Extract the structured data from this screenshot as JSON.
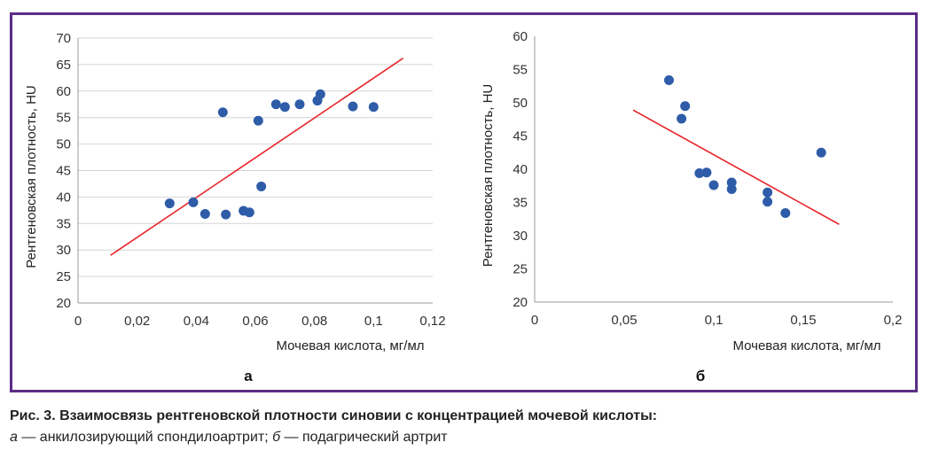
{
  "caption": {
    "title": "Рис. 3. Взаимосвязь рентгеновской плотности синовии с концентрацией мочевой кислоты:",
    "a_letter": "а",
    "a_text": " — анкилозирующий спондилоартрит; ",
    "b_letter": "б",
    "b_text": " — подагрический артрит"
  },
  "colors": {
    "frame": "#5b2d86",
    "points": "#2f5ca8",
    "trend": "#e8262b",
    "grid": "#d4d4d4"
  },
  "chart_data": [
    {
      "type": "scatter",
      "panel_label": "а",
      "xlabel": "Мочевая кислота, мг/мл",
      "ylabel": "Рентгеновская плотность, HU",
      "xlim": [
        0,
        0.12
      ],
      "ylim": [
        20,
        70
      ],
      "x_ticks": [
        "0",
        "0,02",
        "0,04",
        "0,06",
        "0,08",
        "0,1",
        "0,12"
      ],
      "y_ticks": [
        "20",
        "25",
        "30",
        "35",
        "40",
        "45",
        "50",
        "55",
        "60",
        "65",
        "70"
      ],
      "grid": true,
      "points": [
        {
          "x": 0.031,
          "y": 38.8
        },
        {
          "x": 0.039,
          "y": 39.0
        },
        {
          "x": 0.043,
          "y": 36.8
        },
        {
          "x": 0.049,
          "y": 56.0
        },
        {
          "x": 0.05,
          "y": 36.7
        },
        {
          "x": 0.056,
          "y": 37.4
        },
        {
          "x": 0.058,
          "y": 37.1
        },
        {
          "x": 0.061,
          "y": 54.4
        },
        {
          "x": 0.062,
          "y": 42.0
        },
        {
          "x": 0.067,
          "y": 57.5
        },
        {
          "x": 0.07,
          "y": 57.0
        },
        {
          "x": 0.075,
          "y": 57.5
        },
        {
          "x": 0.081,
          "y": 58.2
        },
        {
          "x": 0.082,
          "y": 59.4
        },
        {
          "x": 0.093,
          "y": 57.1
        },
        {
          "x": 0.1,
          "y": 57.0
        }
      ],
      "trendline": [
        {
          "x": 0.011,
          "y": 29.0
        },
        {
          "x": 0.11,
          "y": 66.2
        }
      ]
    },
    {
      "type": "scatter",
      "panel_label": "б",
      "xlabel": "Мочевая кислота, мг/мл",
      "ylabel": "Рентгеновская плотность, HU",
      "xlim": [
        0,
        0.2
      ],
      "ylim": [
        20,
        60
      ],
      "x_ticks": [
        "0",
        "0,05",
        "0,1",
        "0,15",
        "0,2"
      ],
      "y_ticks": [
        "20",
        "25",
        "30",
        "35",
        "40",
        "45",
        "50",
        "55",
        "60"
      ],
      "grid": false,
      "points": [
        {
          "x": 0.075,
          "y": 53.4
        },
        {
          "x": 0.082,
          "y": 47.6
        },
        {
          "x": 0.084,
          "y": 49.5
        },
        {
          "x": 0.092,
          "y": 39.4
        },
        {
          "x": 0.096,
          "y": 39.5
        },
        {
          "x": 0.1,
          "y": 37.6
        },
        {
          "x": 0.11,
          "y": 38.0
        },
        {
          "x": 0.11,
          "y": 37.0
        },
        {
          "x": 0.13,
          "y": 36.5
        },
        {
          "x": 0.13,
          "y": 35.1
        },
        {
          "x": 0.14,
          "y": 33.4
        },
        {
          "x": 0.16,
          "y": 42.5
        }
      ],
      "trendline": [
        {
          "x": 0.055,
          "y": 48.9
        },
        {
          "x": 0.17,
          "y": 31.7
        }
      ]
    }
  ]
}
